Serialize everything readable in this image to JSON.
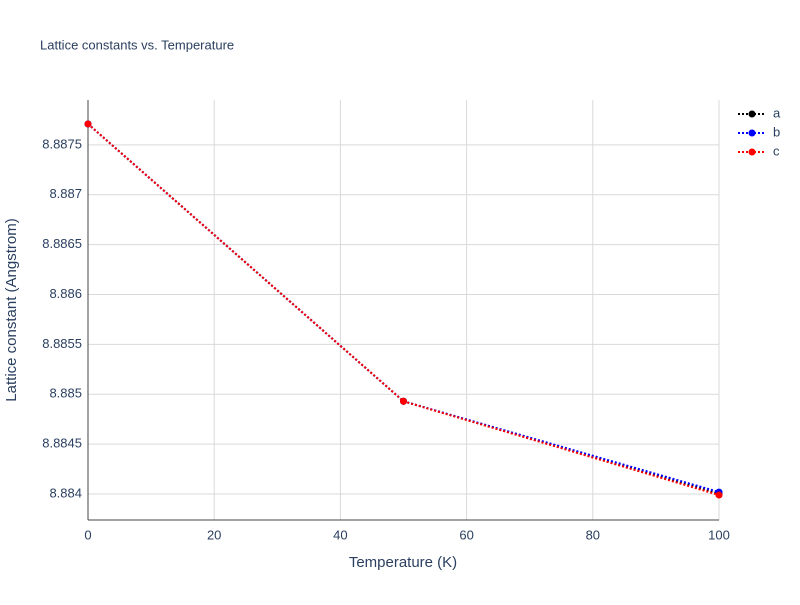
{
  "chart_data": {
    "type": "line",
    "title": "Lattice constants vs. Temperature",
    "x_label": "Temperature (K)",
    "y_label": "Lattice constant (Angstrom)",
    "x": [
      0,
      50,
      100
    ],
    "series": [
      {
        "name": "a",
        "color": "#000000",
        "values": [
          8.88771,
          8.88493,
          8.884
        ]
      },
      {
        "name": "b",
        "color": "#0000ff",
        "values": [
          8.88771,
          8.88493,
          8.88402
        ]
      },
      {
        "name": "c",
        "color": "#ff0000",
        "values": [
          8.88771,
          8.88493,
          8.88399
        ]
      }
    ],
    "xlim": [
      0,
      100
    ],
    "xticks": [
      0,
      20,
      40,
      60,
      80,
      100
    ],
    "ylim": [
      8.88374,
      8.88795
    ],
    "yticks": [
      8.884,
      8.8845,
      8.885,
      8.8855,
      8.886,
      8.8865,
      8.887,
      8.8875
    ],
    "grid": true,
    "legend": "top-right"
  }
}
